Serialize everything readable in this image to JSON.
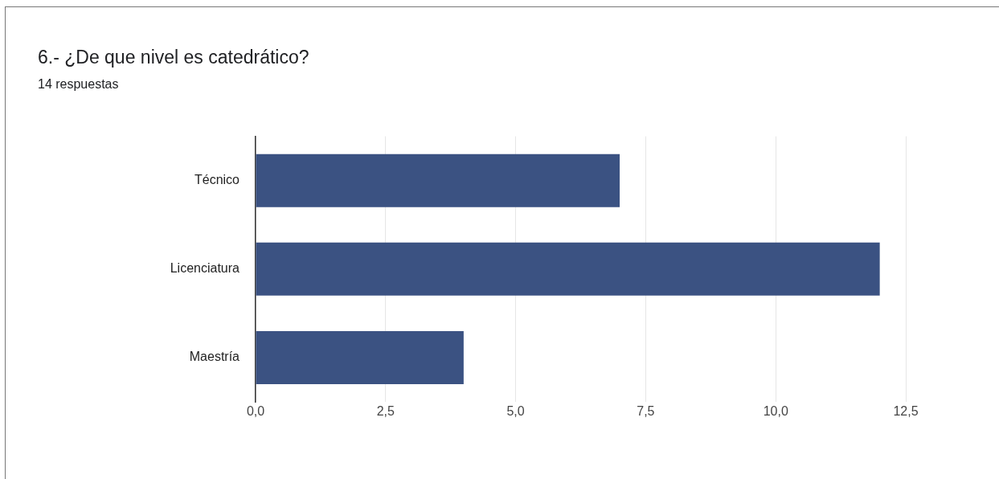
{
  "chart_data": {
    "type": "bar",
    "orientation": "horizontal",
    "title": "6.- ¿De que nivel es catedrático?",
    "subtitle": "14 respuestas",
    "categories": [
      "Técnico",
      "Licenciatura",
      "Maestría"
    ],
    "values": [
      7,
      12,
      4
    ],
    "color": "#3b5282",
    "xlim": [
      0,
      12.5
    ],
    "xticks": [
      {
        "value": 0,
        "label": "0,0"
      },
      {
        "value": 2.5,
        "label": "2,5"
      },
      {
        "value": 5,
        "label": "5,0"
      },
      {
        "value": 7.5,
        "label": "7,5"
      },
      {
        "value": 10,
        "label": "10,0"
      },
      {
        "value": 12.5,
        "label": "12,5"
      }
    ],
    "grid": "x",
    "legend": false
  }
}
